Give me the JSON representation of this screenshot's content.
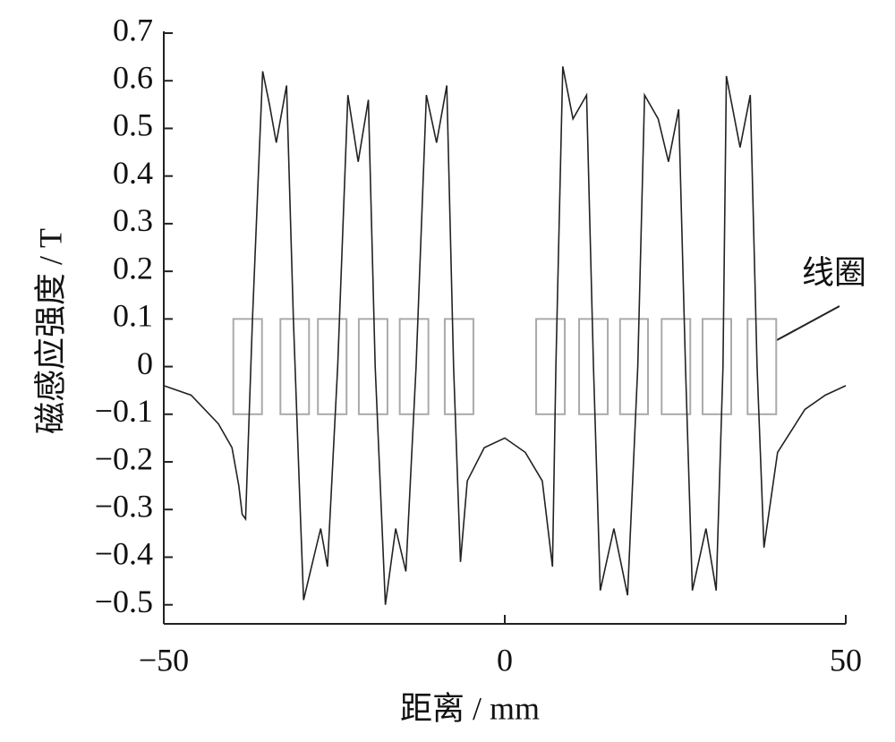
{
  "chart_data": {
    "type": "line",
    "x_label": "距离 / mm",
    "y_label": "磁感应强度 / T",
    "annotation": "线圈",
    "xlim": [
      -50,
      50
    ],
    "ylim": [
      -0.54,
      0.7
    ],
    "xticks": [
      {
        "value": -50,
        "label": "−50"
      },
      0,
      50
    ],
    "yticks": [
      0.7,
      0.6,
      0.5,
      0.4,
      0.3,
      0.2,
      0.1,
      0,
      {
        "value": -0.1,
        "label": "−0.1"
      },
      {
        "value": -0.2,
        "label": "−0.2"
      },
      {
        "value": -0.3,
        "label": "−0.3"
      },
      {
        "value": -0.4,
        "label": "−0.4"
      },
      {
        "value": -0.5,
        "label": "−0.5"
      }
    ],
    "coil_height": [
      -0.1,
      0.1
    ],
    "coils": [
      [
        -39.8,
        -35.6
      ],
      [
        -32.9,
        -28.7
      ],
      [
        -27.4,
        -23.2
      ],
      [
        -21.4,
        -17.2
      ],
      [
        -15.4,
        -11.2
      ],
      [
        -8.8,
        -4.6
      ],
      [
        4.6,
        8.8
      ],
      [
        10.9,
        15.1
      ],
      [
        16.9,
        21.0
      ],
      [
        23.0,
        27.2
      ],
      [
        29.0,
        33.2
      ],
      [
        35.6,
        39.8
      ]
    ],
    "series": [
      {
        "color": "#222222",
        "x": [
          -50,
          -46,
          -42,
          -40,
          -39,
          -38.5,
          -38,
          -37,
          -36,
          -35.5,
          -34.5,
          -33.5,
          -32,
          -31,
          -30,
          -29.5,
          -28,
          -27,
          -26,
          -24.5,
          -23,
          -21.5,
          -20,
          -19,
          -17.5,
          -16,
          -14.5,
          -13,
          -11.5,
          -10,
          -8.5,
          -7.5,
          -6.5,
          -5.5,
          -3,
          0,
          3,
          5.5,
          7,
          7.5,
          8.5,
          10,
          12,
          13,
          14,
          16,
          18,
          19.5,
          20.5,
          22.5,
          24,
          25.5,
          26.5,
          27.5,
          29.5,
          31,
          32,
          32.5,
          34.5,
          36,
          37,
          38,
          39,
          40,
          44,
          47,
          50
        ],
        "values": [
          -0.04,
          -0.06,
          -0.12,
          -0.17,
          -0.25,
          -0.31,
          -0.32,
          0.1,
          0.45,
          0.62,
          0.55,
          0.47,
          0.59,
          0.1,
          -0.3,
          -0.49,
          -0.4,
          -0.34,
          -0.42,
          0.0,
          0.57,
          0.43,
          0.56,
          0.0,
          -0.5,
          -0.34,
          -0.43,
          0.0,
          0.57,
          0.47,
          0.59,
          0.0,
          -0.41,
          -0.24,
          -0.17,
          -0.15,
          -0.18,
          -0.24,
          -0.42,
          0.0,
          0.63,
          0.52,
          0.57,
          0.0,
          -0.47,
          -0.34,
          -0.48,
          0.0,
          0.57,
          0.52,
          0.43,
          0.54,
          0.0,
          -0.47,
          -0.34,
          -0.47,
          0.0,
          0.61,
          0.46,
          0.57,
          0.0,
          -0.38,
          -0.28,
          -0.18,
          -0.09,
          -0.06,
          -0.04
        ]
      }
    ]
  }
}
